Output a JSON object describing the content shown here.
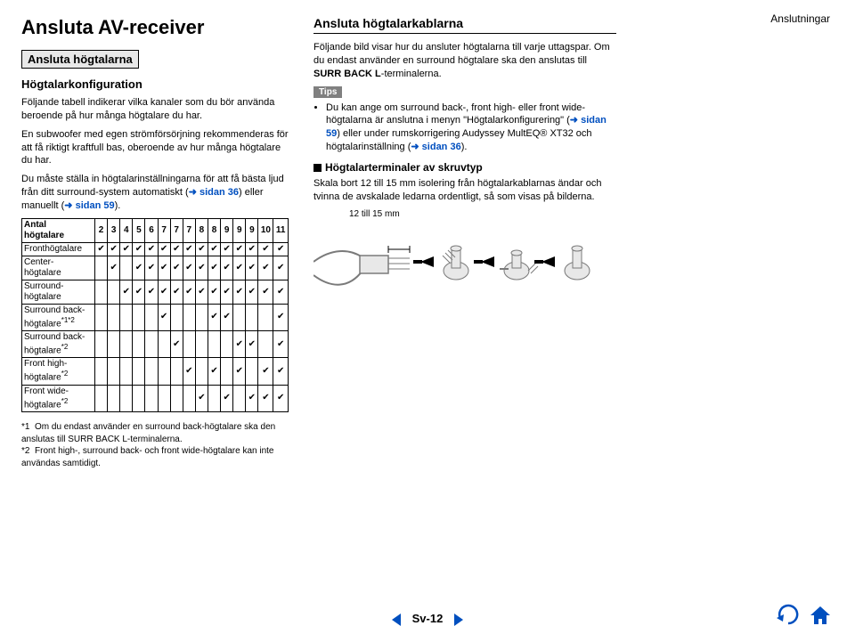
{
  "header_right": "Anslutningar",
  "left": {
    "h1": "Ansluta AV-receiver",
    "tag": "Ansluta högtalarna",
    "sub": "Högtalarkonfiguration",
    "p1": "Följande tabell indikerar vilka kanaler som du bör använda beroende på hur många högtalare du har.",
    "p2": "En subwoofer med egen strömförsörjning rekommenderas för att få riktigt kraftfull bas, oberoende av hur många högtalare du har.",
    "p3a": "Du måste ställa in högtalarinställningarna för att få bästa ljud från ditt surround-system automatiskt (",
    "p3_link1": "sidan 36",
    "p3b": ") eller manuellt (",
    "p3_link2": "sidan 59",
    "p3c": ").",
    "table": {
      "head_label": "Antal högtalare",
      "cols": [
        "2",
        "3",
        "4",
        "5",
        "6",
        "7",
        "7",
        "7",
        "8",
        "8",
        "9",
        "9",
        "9",
        "10",
        "11"
      ],
      "rows": [
        {
          "label": "Fronthögtalare",
          "cells": [
            "✔",
            "✔",
            "✔",
            "✔",
            "✔",
            "✔",
            "✔",
            "✔",
            "✔",
            "✔",
            "✔",
            "✔",
            "✔",
            "✔",
            "✔"
          ]
        },
        {
          "label": "Center-högtalare",
          "cells": [
            "",
            "✔",
            "",
            "✔",
            "✔",
            "✔",
            "✔",
            "✔",
            "✔",
            "✔",
            "✔",
            "✔",
            "✔",
            "✔",
            "✔"
          ]
        },
        {
          "label": "Surround-högtalare",
          "cells": [
            "",
            "",
            "✔",
            "✔",
            "✔",
            "✔",
            "✔",
            "✔",
            "✔",
            "✔",
            "✔",
            "✔",
            "✔",
            "✔",
            "✔"
          ]
        },
        {
          "label": "Surround back-högtalare",
          "sup": "*1*2",
          "cells": [
            "",
            "",
            "",
            "",
            "",
            "✔",
            "",
            "",
            "",
            "✔",
            "✔",
            "",
            "",
            "",
            "✔"
          ]
        },
        {
          "label": "Surround back-högtalare",
          "sup": "*2",
          "cells": [
            "",
            "",
            "",
            "",
            "",
            "",
            "✔",
            "",
            "",
            "",
            "",
            "✔",
            "✔",
            "",
            "✔"
          ]
        },
        {
          "label": "Front high-högtalare",
          "sup": "*2",
          "cells": [
            "",
            "",
            "",
            "",
            "",
            "",
            "",
            "✔",
            "",
            "✔",
            "",
            "✔",
            "",
            "✔",
            "✔"
          ]
        },
        {
          "label": "Front wide-högtalare",
          "sup": "*2",
          "cells": [
            "",
            "",
            "",
            "",
            "",
            "",
            "",
            "",
            "✔",
            "",
            "✔",
            "",
            "✔",
            "✔",
            "✔"
          ]
        }
      ]
    },
    "foot1_pre": "*1",
    "foot1": "Om du endast använder en surround back-högtalare ska den anslutas till SURR BACK L-terminalerna.",
    "foot2_pre": "*2",
    "foot2": "Front high-, surround back- och front wide-högtalare kan inte användas samtidigt."
  },
  "right": {
    "title": "Ansluta högtalarkablarna",
    "p1a": "Följande bild visar hur du ansluter högtalarna till varje uttagspar. Om du endast använder en surround högtalare ska den anslutas till ",
    "p1b": "SURR BACK L",
    "p1c": "-terminalerna.",
    "tips_label": "Tips",
    "tip1a": "Du kan ange om surround back-, front high- eller front wide-högtalarna är anslutna i menyn \"Högtalarkonfigurering\" (",
    "tip1_link1": "sidan 59",
    "tip1b": ") eller under rumskorrigering Audyssey MultEQ® XT32 och högtalarinställning (",
    "tip1_link2": "sidan 36",
    "tip1c": ").",
    "term_title": "Högtalarterminaler av skruvtyp",
    "p2": "Skala bort 12 till 15 mm isolering från högtalarkablarnas ändar och tvinna de avskalade ledarna ordentligt, så som visas på bilderna.",
    "diag_label": "12 till 15 mm",
    "diagram": {
      "arrow_color": "#000000",
      "stroke_color": "#7a7a7a",
      "fill_light": "#e8e8e8"
    }
  },
  "footer": {
    "page": "Sv-12",
    "tri_color": "#004fbf",
    "icon_fill": "#004fbf",
    "back_stroke": "#004fbf"
  }
}
